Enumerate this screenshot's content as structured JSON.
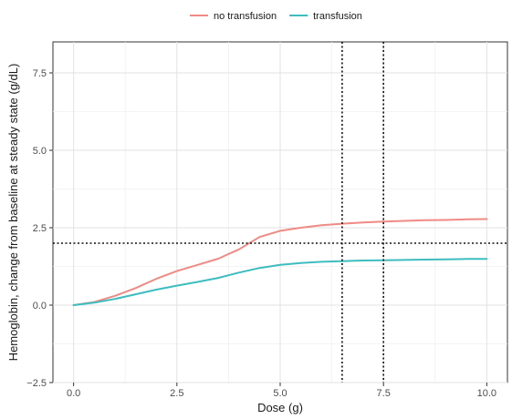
{
  "chart_data": {
    "type": "line",
    "xlabel": "Dose (g)",
    "ylabel": "Hemoglobin, change from baseline at steady state (g/dL)",
    "xlim": [
      -0.5,
      10.5
    ],
    "ylim": [
      -2.5,
      8.5
    ],
    "x_ticks": [
      0.0,
      2.5,
      5.0,
      7.5,
      10.0
    ],
    "y_ticks": [
      -2.5,
      0.0,
      2.5,
      5.0,
      7.5
    ],
    "x_tick_labels": [
      "0.0",
      "2.5",
      "5.0",
      "7.5",
      "10.0"
    ],
    "y_tick_labels": [
      "−2.5",
      "0.0",
      "2.5",
      "5.0",
      "7.5"
    ],
    "x_minor_ticks": [
      1.25,
      3.75,
      6.25,
      8.75
    ],
    "y_minor_ticks": [
      -1.25,
      1.25,
      3.75,
      6.25
    ],
    "grid": true,
    "legend_position": "top",
    "series": [
      {
        "name": "no transfusion",
        "color": "#F08A84",
        "x": [
          0.0,
          0.5,
          1.0,
          1.5,
          2.0,
          2.5,
          3.0,
          3.5,
          4.0,
          4.5,
          5.0,
          5.5,
          6.0,
          6.5,
          7.0,
          7.5,
          8.0,
          8.5,
          9.0,
          9.5,
          10.0
        ],
        "y": [
          0.0,
          0.1,
          0.3,
          0.55,
          0.85,
          1.1,
          1.3,
          1.5,
          1.8,
          2.2,
          2.4,
          2.5,
          2.58,
          2.63,
          2.67,
          2.7,
          2.72,
          2.74,
          2.75,
          2.77,
          2.78
        ]
      },
      {
        "name": "transfusion",
        "color": "#3DBDBF",
        "x": [
          0.0,
          0.5,
          1.0,
          1.5,
          2.0,
          2.5,
          3.0,
          3.5,
          4.0,
          4.5,
          5.0,
          5.5,
          6.0,
          6.5,
          7.0,
          7.5,
          8.0,
          8.5,
          9.0,
          9.5,
          10.0
        ],
        "y": [
          0.0,
          0.08,
          0.2,
          0.35,
          0.5,
          0.63,
          0.75,
          0.88,
          1.05,
          1.2,
          1.3,
          1.36,
          1.4,
          1.42,
          1.44,
          1.45,
          1.46,
          1.47,
          1.48,
          1.49,
          1.49
        ]
      }
    ],
    "reference_lines": [
      {
        "orientation": "horizontal",
        "value": 2.0,
        "style": "dotted"
      },
      {
        "orientation": "vertical",
        "value": 6.5,
        "style": "dotted"
      },
      {
        "orientation": "vertical",
        "value": 7.5,
        "style": "dotted"
      }
    ]
  }
}
